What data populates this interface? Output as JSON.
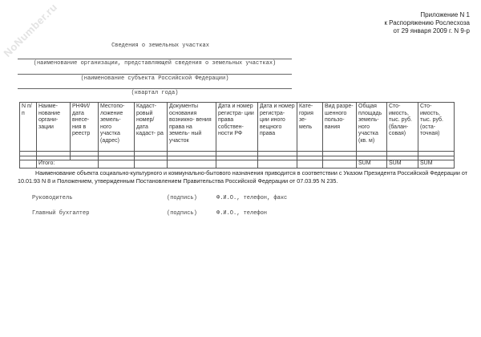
{
  "watermark": "NoNumber.ru",
  "appendix": [
    "Приложение N 1",
    "к Распоряжению Рослесхоза",
    "от 29 января 2009 г. N 9-р"
  ],
  "title": "Сведения о земельных участках",
  "captions": [
    "(наименование организации, представляющей сведения о земельных участках)",
    "(наименование субъекта Российской Федерации)",
    "(квартал года)"
  ],
  "table": {
    "headers": [
      "N п/п",
      "Наиме- нование органи- зации",
      "РНФИ/ дата внесе- ния в реестр",
      "Местопо- ложение земель- ного участка (адрес)",
      "Кадаст- ровый номер/ дата кадаст- ра",
      "Документы основания возникно- вения права на земель- ный участок",
      "Дата и номер регистра- ции права собствен- ности РФ",
      "Дата и номер регистра- ции иного вещного права",
      "Кате- гория зе- мель",
      "Вид разре- шенного пользо- вания",
      "Общая площадь земель- ного участка (кв. м)",
      "Сто- имость, тыс. руб. (балан- совая)",
      "Сто- имость, тыс. руб. (оста- точная)"
    ],
    "total_label": "Итого:",
    "total_values": [
      "SUM",
      "SUM",
      "SUM"
    ]
  },
  "note": "Наименование объекта социально-культурного и коммунально-бытового назначения приводится в соответствии с Указом Президента Российской Федерации от 10.01.93 N 8 и Положением, утвержденным Постановлением Правительства Российской Федерации от 07.03.95 N 235.",
  "signatures": [
    {
      "role": "Руководитель",
      "sign": "(подпись)",
      "info": "Ф.И.О., телефон, факс"
    },
    {
      "role": "Главный бухгалтер",
      "sign": "(подпись)",
      "info": "Ф.И.О., телефон"
    }
  ]
}
